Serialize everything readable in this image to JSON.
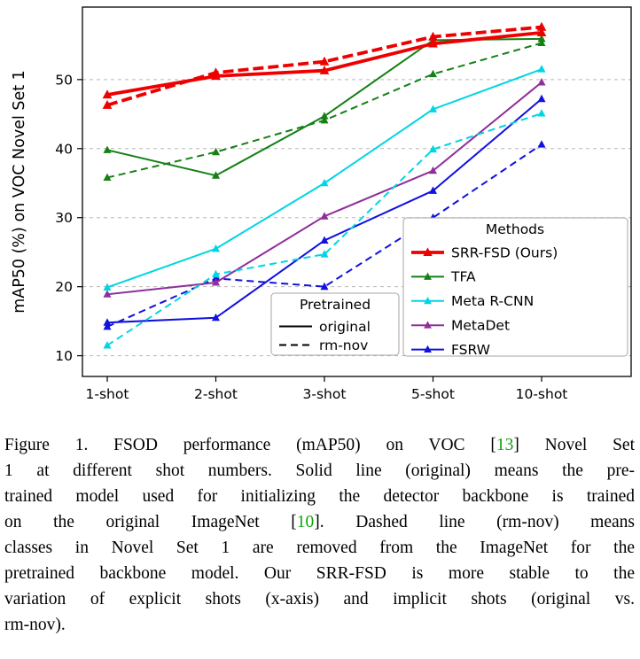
{
  "colors": {
    "citation": "#0ca30c",
    "background": "#ffffff",
    "axis": "#000000"
  },
  "chart_data": {
    "type": "line",
    "title": "",
    "xlabel": "",
    "ylabel": "mAP50 (%) on VOC Novel Set 1",
    "categories": [
      "1-shot",
      "2-shot",
      "3-shot",
      "5-shot",
      "10-shot"
    ],
    "yticks": [
      10,
      20,
      30,
      40,
      50
    ],
    "ylim": [
      7,
      60.5
    ],
    "grid": true,
    "marker": "triangle-up",
    "colors": {
      "grid": "#b8b8b8",
      "legend_border": "#a6a6a6",
      "pretrained_sample": "#000000"
    },
    "series": [
      {
        "name": "SRR-FSD (Ours)",
        "pretrained": "original",
        "style": "solid",
        "color": "#ef0000",
        "values": [
          47.8,
          50.5,
          51.3,
          55.2,
          56.8
        ]
      },
      {
        "name": "SRR-FSD (Ours)",
        "pretrained": "rm-nov",
        "style": "dashed",
        "color": "#ef0000",
        "values": [
          46.3,
          51.0,
          52.6,
          56.2,
          57.6
        ]
      },
      {
        "name": "TFA",
        "pretrained": "original",
        "style": "solid",
        "color": "#158015",
        "values": [
          39.8,
          36.1,
          44.7,
          55.7,
          55.9
        ]
      },
      {
        "name": "TFA",
        "pretrained": "rm-nov",
        "style": "dashed",
        "color": "#158015",
        "values": [
          35.8,
          39.5,
          44.1,
          50.8,
          55.3
        ]
      },
      {
        "name": "Meta R-CNN",
        "pretrained": "original",
        "style": "solid",
        "color": "#00d5e5",
        "values": [
          19.9,
          25.5,
          35.0,
          45.7,
          51.5
        ]
      },
      {
        "name": "Meta R-CNN",
        "pretrained": "rm-nov",
        "style": "dashed",
        "color": "#00d5e5",
        "values": [
          11.5,
          21.8,
          24.7,
          39.9,
          45.1
        ]
      },
      {
        "name": "MetaDet",
        "pretrained": "original",
        "style": "solid",
        "color": "#8f2f9b",
        "values": [
          18.9,
          20.6,
          30.2,
          36.8,
          49.6
        ]
      },
      {
        "name": "FSRW",
        "pretrained": "original",
        "style": "solid",
        "color": "#1111e0",
        "values": [
          14.8,
          15.5,
          26.7,
          33.9,
          47.2
        ]
      },
      {
        "name": "FSRW",
        "pretrained": "rm-nov",
        "style": "dashed",
        "color": "#1111e0",
        "values": [
          14.2,
          21.2,
          20.0,
          30.0,
          40.6
        ]
      }
    ],
    "legends": {
      "methods": {
        "title": "Methods",
        "entries": [
          "SRR-FSD (Ours)",
          "TFA",
          "Meta R-CNN",
          "MetaDet",
          "FSRW"
        ]
      },
      "pretrained": {
        "title": "Pretrained",
        "entries": [
          "original",
          "rm-nov"
        ]
      }
    }
  },
  "caption": {
    "l1a": "Figure 1. FSOD performance (mAP50) on VOC [",
    "l1cite": "13",
    "l1b": "] Novel Set",
    "l2": "1 at different shot numbers.  Solid line (original) means the pre-",
    "l3": "trained model used for initializing the detector backbone is trained",
    "l4a": "on the original ImageNet [",
    "l4cite": "10",
    "l4b": "].  Dashed line (rm-nov) means",
    "l5": "classes in Novel Set 1 are removed from the ImageNet for the",
    "l6": "pretrained backbone model.  Our SRR-FSD is more stable to the",
    "l7": "variation of explicit shots (x-axis) and implicit shots (original vs.",
    "l8": "rm-nov)."
  }
}
